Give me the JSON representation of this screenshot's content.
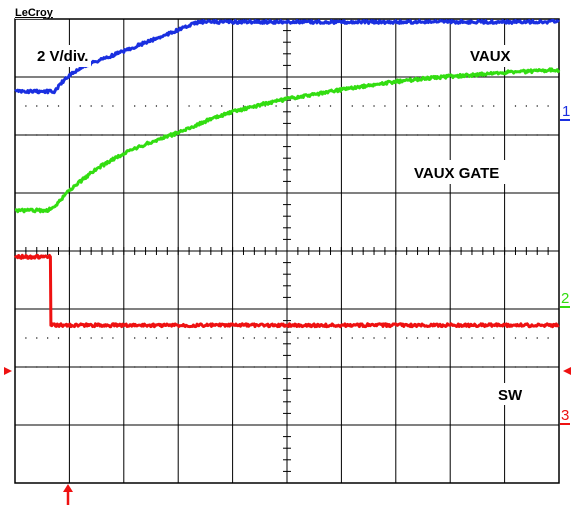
{
  "brand": "LeCroy",
  "scale_label": "2 V/div.",
  "chart_data": {
    "type": "line",
    "title": "",
    "xlabel": "",
    "ylabel": "",
    "x_divisions": 10,
    "y_divisions": 8,
    "grid": "dotted divisions with center crosshair ticks",
    "trigger_position_div": 0.65,
    "ground_marker_div": 6.6,
    "series": [
      {
        "name": "VAUX",
        "channel": "1",
        "color": "#1a2fe0",
        "points": [
          [
            0,
            1.25
          ],
          [
            0.72,
            1.25
          ],
          [
            0.95,
            1.0
          ],
          [
            1.25,
            0.82
          ],
          [
            2.0,
            0.55
          ],
          [
            2.5,
            0.37
          ],
          [
            3.0,
            0.19
          ],
          [
            3.35,
            0.06
          ],
          [
            3.5,
            0.05
          ],
          [
            10,
            0.05
          ]
        ]
      },
      {
        "name": "VAUX GATE",
        "channel": "2",
        "color": "#33dd11",
        "points": [
          [
            0,
            3.3
          ],
          [
            0.6,
            3.3
          ],
          [
            0.72,
            3.24
          ],
          [
            1.0,
            2.95
          ],
          [
            1.5,
            2.58
          ],
          [
            2.0,
            2.32
          ],
          [
            2.5,
            2.12
          ],
          [
            3.0,
            1.96
          ],
          [
            3.5,
            1.76
          ],
          [
            4.0,
            1.6
          ],
          [
            4.5,
            1.48
          ],
          [
            5.0,
            1.38
          ],
          [
            5.5,
            1.3
          ],
          [
            6.0,
            1.22
          ],
          [
            6.5,
            1.15
          ],
          [
            7.0,
            1.08
          ],
          [
            7.5,
            1.03
          ],
          [
            8.0,
            0.99
          ],
          [
            8.5,
            0.96
          ],
          [
            9.0,
            0.92
          ],
          [
            9.5,
            0.9
          ],
          [
            10,
            0.88
          ]
        ]
      },
      {
        "name": "SW",
        "channel": "3",
        "color": "#ee1111",
        "points": [
          [
            0,
            4.1
          ],
          [
            0.65,
            4.1
          ],
          [
            0.66,
            5.28
          ],
          [
            10,
            5.28
          ]
        ]
      }
    ]
  }
}
